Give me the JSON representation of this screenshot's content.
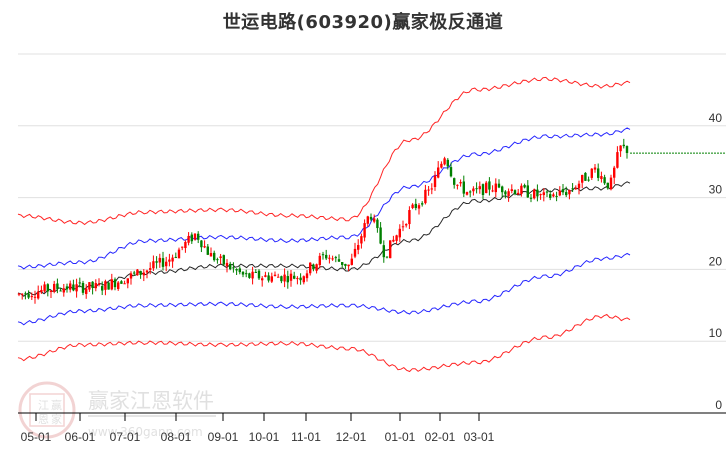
{
  "title": "世运电路(603920)赢家极反通道",
  "watermark": {
    "brand_text": "赢家江恩软件",
    "url_text": "www.360gann.com",
    "seal_chars": [
      "江",
      "赢",
      "恩",
      "家"
    ]
  },
  "colors": {
    "up_candle": "#ff0000",
    "down_candle": "#008000",
    "outer_band": "#ff0000",
    "inner_band": "#0000ff",
    "midline": "#000000",
    "last_price_line": "#008000",
    "grid": "#e0e0e0",
    "axis": "#000000"
  },
  "chart_data": {
    "type": "candlestick",
    "title": "世运电路(603920)赢家极反通道",
    "xlabel": "",
    "ylabel": "",
    "ylim": [
      0,
      50
    ],
    "grid": true,
    "y_ticks": [
      0,
      10,
      20,
      30,
      40
    ],
    "x_ticks": [
      "05-01",
      "06-01",
      "07-01",
      "08-01",
      "09-01",
      "10-01",
      "11-01",
      "12-01",
      "01-01",
      "02-01",
      "03-01"
    ],
    "y_axis_position": "right",
    "legend": "none",
    "last_price": 36.2,
    "_note": "Band and midline values are approximate pixel readings off the y-axis grid. The candle series is NOT read from the image: it is procedurally generated in the template to follow the visible trend, and its per-bar OHLC values are synthetic.",
    "series": [
      {
        "name": "outer_upper_band",
        "color": "#ff0000",
        "x": [
          "05-01",
          "06-01",
          "07-01",
          "08-01",
          "09-01",
          "10-01",
          "11-01",
          "12-01",
          "01-01",
          "02-01",
          "02-15"
        ],
        "values": [
          27.5,
          26.5,
          28.0,
          28.3,
          27.5,
          27.0,
          38.0,
          45.0,
          46.5,
          45.5,
          46.0
        ]
      },
      {
        "name": "inner_upper_band",
        "color": "#0000ff",
        "x": [
          "05-01",
          "06-01",
          "07-01",
          "08-01",
          "09-01",
          "10-01",
          "11-01",
          "12-01",
          "01-01",
          "02-01",
          "02-15"
        ],
        "values": [
          20.3,
          21.0,
          24.0,
          24.5,
          24.0,
          24.5,
          31.5,
          36.0,
          38.5,
          38.8,
          39.5
        ]
      },
      {
        "name": "midline",
        "color": "#000000",
        "x": [
          "05-01",
          "06-01",
          "07-01",
          "08-01",
          "09-01",
          "10-01",
          "11-01",
          "12-01",
          "01-01",
          "02-01",
          "02-15"
        ],
        "values": [
          16.5,
          17.5,
          19.5,
          20.5,
          20.5,
          20.0,
          24.0,
          29.5,
          31.0,
          31.3,
          32.0
        ]
      },
      {
        "name": "inner_lower_band",
        "color": "#0000ff",
        "x": [
          "05-01",
          "06-01",
          "07-01",
          "08-01",
          "09-01",
          "10-01",
          "11-01",
          "12-01",
          "01-01",
          "02-01",
          "02-15"
        ],
        "values": [
          12.5,
          14.2,
          15.0,
          15.2,
          14.8,
          15.0,
          14.0,
          15.5,
          19.0,
          21.5,
          22.0
        ]
      },
      {
        "name": "outer_lower_band",
        "color": "#ff0000",
        "x": [
          "05-01",
          "06-01",
          "07-01",
          "08-01",
          "09-01",
          "10-01",
          "11-01",
          "12-01",
          "01-01",
          "02-01",
          "02-15"
        ],
        "values": [
          7.5,
          9.5,
          9.8,
          9.5,
          9.7,
          9.0,
          6.0,
          7.0,
          10.5,
          13.5,
          13.0
        ]
      }
    ]
  }
}
